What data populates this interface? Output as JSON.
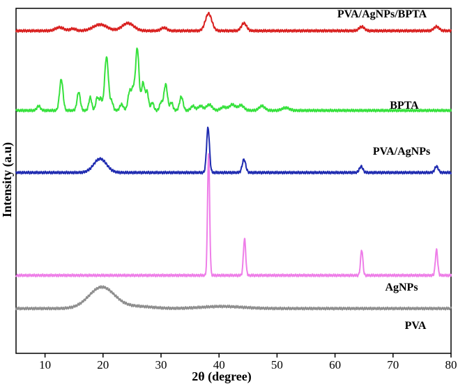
{
  "chart_data": {
    "type": "line",
    "xlabel": "2θ (degree)",
    "ylabel": "Intensity (a.u)",
    "xlim": [
      5,
      80
    ],
    "xticks": [
      10,
      20,
      30,
      40,
      50,
      60,
      70,
      80
    ],
    "grid": false,
    "legend": "inline labels at right",
    "series": [
      {
        "name": "PVA/AgNPs/BPTA",
        "color": "#d9201f",
        "baseline": 0.935,
        "peaks": [
          {
            "x": 12.5,
            "h": 0.01,
            "w": 0.7
          },
          {
            "x": 14.8,
            "h": 0.006,
            "w": 0.5
          },
          {
            "x": 19.5,
            "h": 0.018,
            "w": 1.2
          },
          {
            "x": 24.3,
            "h": 0.022,
            "w": 1.0
          },
          {
            "x": 30.5,
            "h": 0.009,
            "w": 0.5
          },
          {
            "x": 38.2,
            "h": 0.05,
            "w": 0.55
          },
          {
            "x": 44.3,
            "h": 0.022,
            "w": 0.45
          },
          {
            "x": 64.6,
            "h": 0.012,
            "w": 0.45
          },
          {
            "x": 77.5,
            "h": 0.012,
            "w": 0.45
          }
        ]
      },
      {
        "name": "BPTA",
        "color": "#36e13c",
        "baseline": 0.704,
        "peaks": [
          {
            "x": 8.9,
            "h": 0.013,
            "w": 0.3
          },
          {
            "x": 12.8,
            "h": 0.09,
            "w": 0.3
          },
          {
            "x": 15.8,
            "h": 0.053,
            "w": 0.28
          },
          {
            "x": 17.8,
            "h": 0.038,
            "w": 0.25
          },
          {
            "x": 19.0,
            "h": 0.038,
            "w": 0.25
          },
          {
            "x": 19.6,
            "h": 0.033,
            "w": 0.22
          },
          {
            "x": 20.6,
            "h": 0.155,
            "w": 0.33
          },
          {
            "x": 21.5,
            "h": 0.025,
            "w": 0.25
          },
          {
            "x": 23.2,
            "h": 0.018,
            "w": 0.3
          },
          {
            "x": 24.6,
            "h": 0.056,
            "w": 0.3
          },
          {
            "x": 25.2,
            "h": 0.053,
            "w": 0.25
          },
          {
            "x": 25.9,
            "h": 0.18,
            "w": 0.3
          },
          {
            "x": 26.9,
            "h": 0.08,
            "w": 0.28
          },
          {
            "x": 27.6,
            "h": 0.053,
            "w": 0.25
          },
          {
            "x": 28.5,
            "h": 0.023,
            "w": 0.25
          },
          {
            "x": 30.0,
            "h": 0.023,
            "w": 0.25
          },
          {
            "x": 30.8,
            "h": 0.076,
            "w": 0.3
          },
          {
            "x": 31.8,
            "h": 0.023,
            "w": 0.25
          },
          {
            "x": 33.5,
            "h": 0.04,
            "w": 0.3
          },
          {
            "x": 35.5,
            "h": 0.013,
            "w": 0.35
          },
          {
            "x": 36.8,
            "h": 0.013,
            "w": 0.4
          },
          {
            "x": 38.3,
            "h": 0.017,
            "w": 0.5
          },
          {
            "x": 40.8,
            "h": 0.01,
            "w": 0.5
          },
          {
            "x": 42.3,
            "h": 0.017,
            "w": 0.5
          },
          {
            "x": 43.8,
            "h": 0.015,
            "w": 0.5
          },
          {
            "x": 47.4,
            "h": 0.013,
            "w": 0.5
          },
          {
            "x": 51.5,
            "h": 0.008,
            "w": 0.6
          }
        ]
      },
      {
        "name": "PVA/AgNPs",
        "color": "#1f2bb0",
        "baseline": 0.524,
        "peaks": [
          {
            "x": 19.5,
            "h": 0.04,
            "w": 1.1
          },
          {
            "x": 38.1,
            "h": 0.13,
            "w": 0.25
          },
          {
            "x": 44.3,
            "h": 0.038,
            "w": 0.3
          },
          {
            "x": 64.5,
            "h": 0.018,
            "w": 0.3
          },
          {
            "x": 77.5,
            "h": 0.018,
            "w": 0.3
          }
        ]
      },
      {
        "name": "AgNPs",
        "color": "#ee7ee8",
        "baseline": 0.226,
        "peaks": [
          {
            "x": 38.2,
            "h": 0.352,
            "w": 0.18
          },
          {
            "x": 44.4,
            "h": 0.106,
            "w": 0.2
          },
          {
            "x": 64.6,
            "h": 0.074,
            "w": 0.2
          },
          {
            "x": 77.5,
            "h": 0.074,
            "w": 0.2
          }
        ]
      },
      {
        "name": "PVA",
        "color": "#8d8d8d",
        "baseline": 0.13,
        "peaks": [
          {
            "x": 19.8,
            "h": 0.062,
            "w": 2.2
          },
          {
            "x": 26.0,
            "h": 0.006,
            "w": 2.5
          },
          {
            "x": 40.5,
            "h": 0.006,
            "w": 3.5
          }
        ]
      }
    ]
  }
}
